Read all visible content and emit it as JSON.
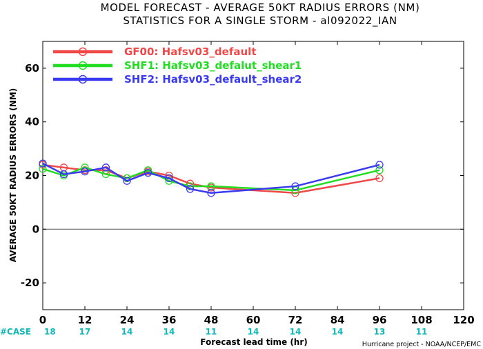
{
  "chart_data": {
    "type": "line",
    "title": "MODEL FORECAST - AVERAGE 50KT RADIUS ERRORS (NM)",
    "subtitle": "STATISTICS FOR A SINGLE STORM - al092022_IAN",
    "xlabel": "Forecast lead time (hr)",
    "ylabel": "AVERAGE 50KT RADIUS ERRORS (NM)",
    "xlim": [
      0,
      120
    ],
    "ylim": [
      -30,
      70
    ],
    "xticks": [
      0,
      12,
      24,
      36,
      48,
      60,
      72,
      84,
      96,
      108,
      120
    ],
    "xtick_labels": [
      "0",
      "12",
      "24",
      "36",
      "48",
      "60",
      "72",
      "84",
      "96",
      "108",
      "120"
    ],
    "yticks": [
      -20,
      0,
      20,
      40,
      60
    ],
    "ytick_labels": [
      "-20",
      "0",
      "20",
      "40",
      "60"
    ],
    "zero_line": true,
    "grid": false,
    "legend_position": "top-left",
    "series": [
      {
        "name": "GF00: Hafsv03_default",
        "color": "#f04848",
        "x": [
          0,
          6,
          12,
          18,
          24,
          30,
          36,
          42,
          48,
          72,
          96
        ],
        "y": [
          24,
          23,
          22,
          22,
          19,
          21.5,
          20,
          17,
          15.5,
          13.5,
          19
        ]
      },
      {
        "name": "SHF1: Hafsv03_defalut_shear1",
        "color": "#22dd22",
        "x": [
          0,
          6,
          12,
          18,
          24,
          30,
          36,
          42,
          48,
          72,
          96
        ],
        "y": [
          22.5,
          20,
          23,
          20.5,
          19,
          22,
          18,
          16,
          16,
          14.5,
          22
        ]
      },
      {
        "name": "SHF2: Hafsv03_default_shear2",
        "color": "#3a3af0",
        "x": [
          0,
          6,
          12,
          18,
          24,
          30,
          36,
          42,
          48,
          72,
          96
        ],
        "y": [
          24.5,
          20.5,
          21.5,
          23,
          18,
          21,
          19,
          15,
          13.5,
          16,
          24
        ]
      }
    ],
    "case_label": "#CASE",
    "case_color": "#10b8b8",
    "case_counts": [
      {
        "x": 0,
        "n": "18"
      },
      {
        "x": 12,
        "n": "17"
      },
      {
        "x": 24,
        "n": "14"
      },
      {
        "x": 36,
        "n": "14"
      },
      {
        "x": 48,
        "n": "11"
      },
      {
        "x": 60,
        "n": "14"
      },
      {
        "x": 72,
        "n": "14"
      },
      {
        "x": 84,
        "n": "14"
      },
      {
        "x": 96,
        "n": "13"
      },
      {
        "x": 108,
        "n": "11"
      }
    ],
    "credit": "Hurricane project - NOAA/NCEP/EMC"
  }
}
